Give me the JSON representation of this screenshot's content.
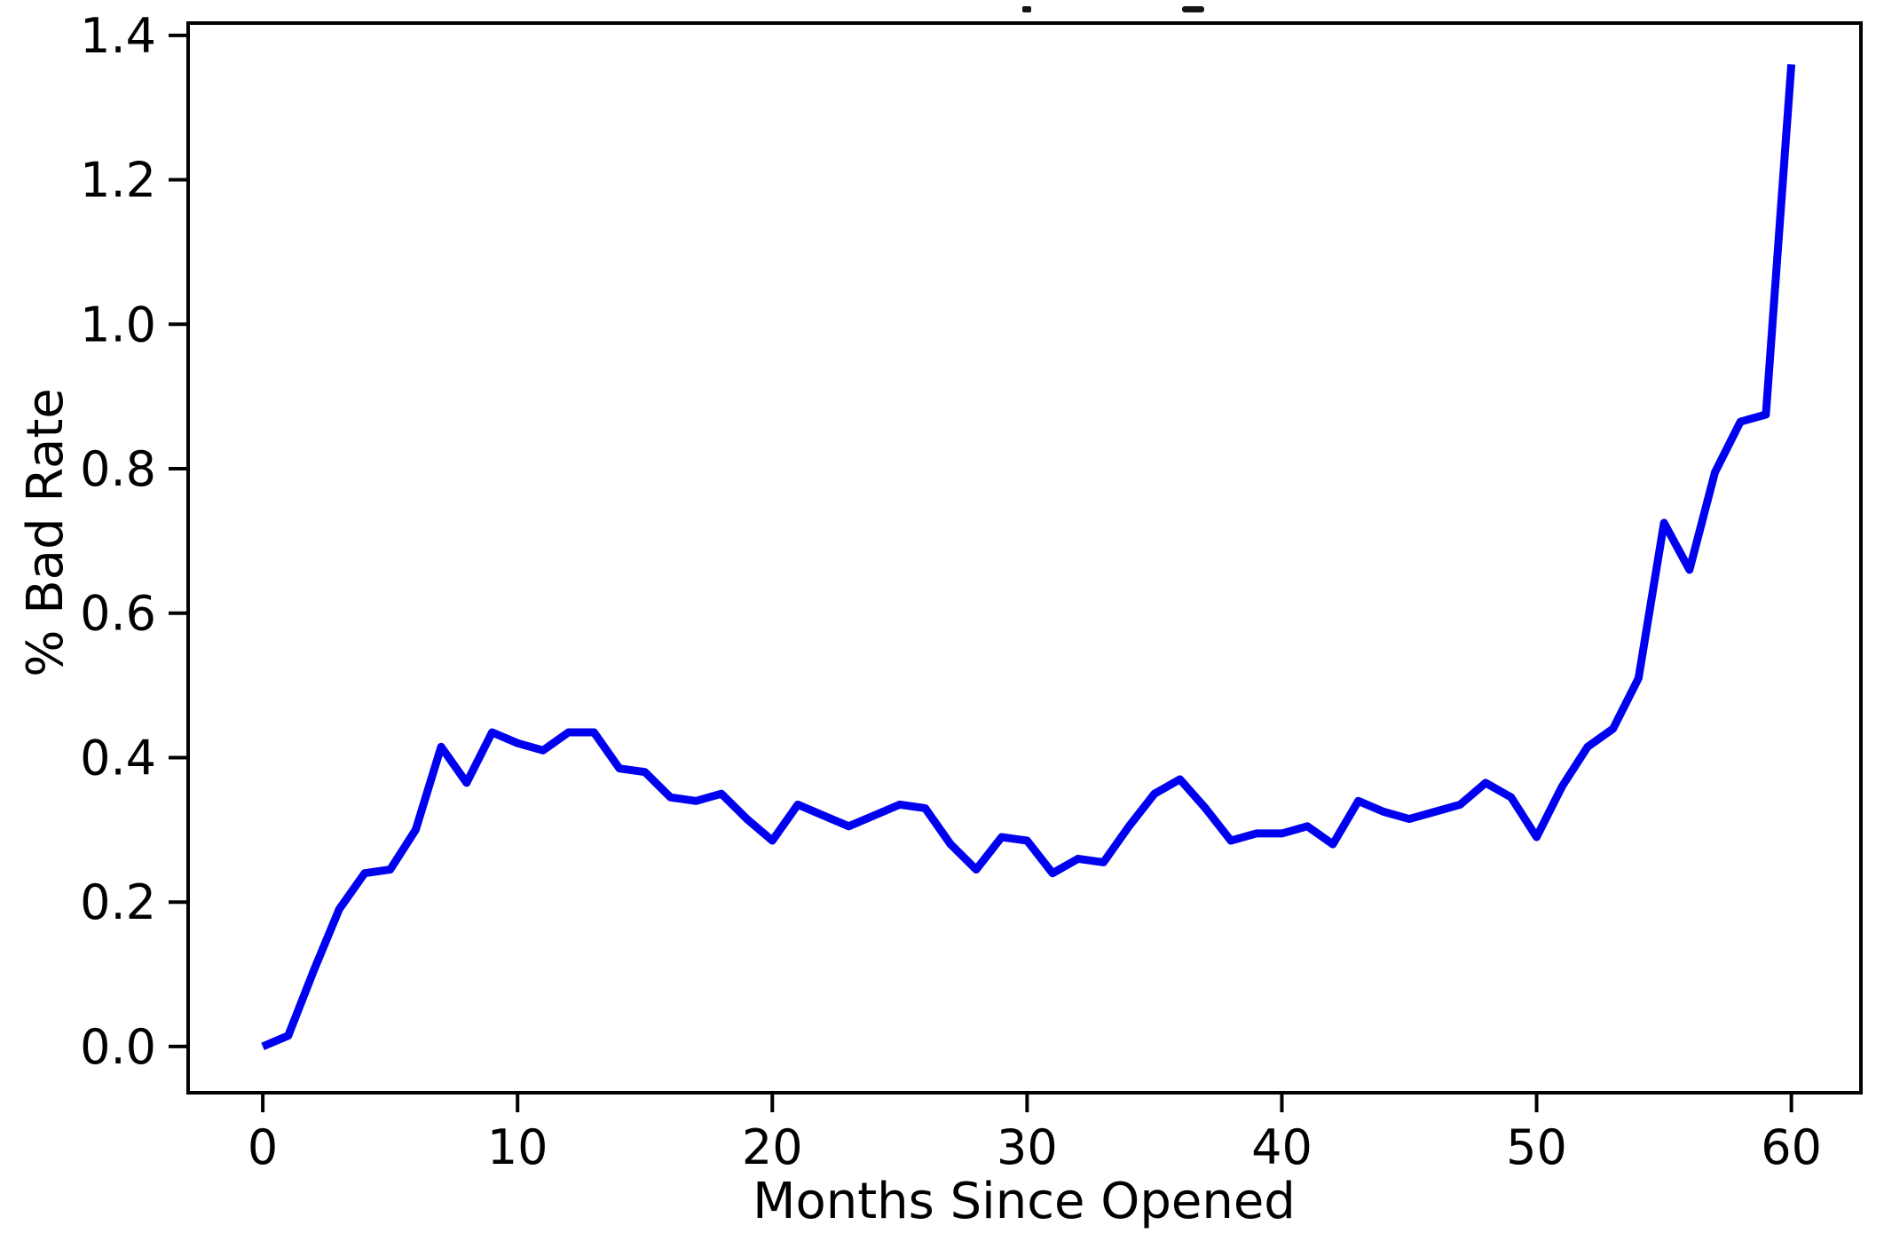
{
  "figure": {
    "background": "#ffffff",
    "line_color": "#0000f0",
    "axis_color": "#000000",
    "tick_label_color": "#000000"
  },
  "chart_data": {
    "type": "line",
    "title": "",
    "xlabel": "Months Since Opened",
    "ylabel": "% Bad Rate",
    "x": [
      0,
      1,
      2,
      3,
      4,
      5,
      6,
      7,
      8,
      9,
      10,
      11,
      12,
      13,
      14,
      15,
      16,
      17,
      18,
      19,
      20,
      21,
      22,
      23,
      24,
      25,
      26,
      27,
      28,
      29,
      30,
      31,
      32,
      33,
      34,
      35,
      36,
      37,
      38,
      39,
      40,
      41,
      42,
      43,
      44,
      45,
      46,
      47,
      48,
      49,
      50,
      51,
      52,
      53,
      54,
      55,
      56,
      57,
      58,
      59,
      60
    ],
    "y": [
      0.0,
      0.015,
      0.105,
      0.19,
      0.24,
      0.245,
      0.3,
      0.415,
      0.365,
      0.435,
      0.42,
      0.41,
      0.435,
      0.435,
      0.385,
      0.38,
      0.345,
      0.34,
      0.35,
      0.315,
      0.285,
      0.335,
      0.32,
      0.305,
      0.32,
      0.335,
      0.33,
      0.28,
      0.245,
      0.29,
      0.285,
      0.24,
      0.26,
      0.255,
      0.305,
      0.35,
      0.37,
      0.33,
      0.285,
      0.295,
      0.295,
      0.305,
      0.28,
      0.34,
      0.325,
      0.315,
      0.325,
      0.335,
      0.365,
      0.345,
      0.29,
      0.36,
      0.415,
      0.44,
      0.51,
      0.725,
      0.66,
      0.795,
      0.865,
      0.875,
      1.36
    ],
    "xticks": [
      "0",
      "10",
      "20",
      "30",
      "40",
      "50",
      "60"
    ],
    "xtick_values": [
      0,
      10,
      20,
      30,
      40,
      50,
      60
    ],
    "yticks": [
      "0.0",
      "0.2",
      "0.4",
      "0.6",
      "0.8",
      "1.0",
      "1.2",
      "1.4"
    ],
    "ytick_values": [
      0.0,
      0.2,
      0.4,
      0.6,
      0.8,
      1.0,
      1.2,
      1.4
    ],
    "xlim": [
      -2.93,
      62.73
    ],
    "ylim": [
      -0.064,
      1.417
    ],
    "grid": false,
    "legend": null,
    "series_name": "% Bad Rate"
  }
}
